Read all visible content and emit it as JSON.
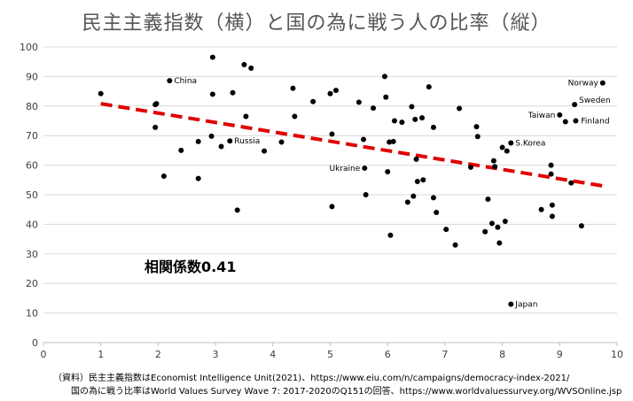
{
  "chart_data": {
    "type": "scatter",
    "title": "民主主義指数（横）と国の為に戦う人の比率（縦）",
    "xlim": [
      0,
      10
    ],
    "ylim": [
      0,
      100
    ],
    "x_ticks": [
      "0",
      "1",
      "2",
      "3",
      "4",
      "5",
      "6",
      "7",
      "8",
      "9",
      "10"
    ],
    "y_ticks": [
      "0",
      "10",
      "20",
      "30",
      "40",
      "50",
      "60",
      "70",
      "80",
      "90",
      "100"
    ],
    "grid": "horizontal",
    "trendline": {
      "type": "linear",
      "x": [
        1,
        9.75
      ],
      "y": [
        80.8,
        53.0
      ],
      "color": "#e00000",
      "style": "dashed"
    },
    "annotation": "相関係数0.41",
    "points": [
      {
        "x": 1.0,
        "y": 84.2
      },
      {
        "x": 1.95,
        "y": 80.5
      },
      {
        "x": 1.97,
        "y": 80.8
      },
      {
        "x": 1.95,
        "y": 72.8
      },
      {
        "x": 2.1,
        "y": 56.3
      },
      {
        "x": 2.2,
        "y": 88.6,
        "label": "China"
      },
      {
        "x": 2.4,
        "y": 65.0
      },
      {
        "x": 2.7,
        "y": 55.5
      },
      {
        "x": 2.7,
        "y": 68.0
      },
      {
        "x": 2.93,
        "y": 69.8
      },
      {
        "x": 2.95,
        "y": 96.5
      },
      {
        "x": 2.95,
        "y": 84.0
      },
      {
        "x": 3.1,
        "y": 66.3
      },
      {
        "x": 3.25,
        "y": 68.2,
        "label": "Russia"
      },
      {
        "x": 3.3,
        "y": 84.5
      },
      {
        "x": 3.38,
        "y": 44.8
      },
      {
        "x": 3.5,
        "y": 94.0
      },
      {
        "x": 3.53,
        "y": 76.5
      },
      {
        "x": 3.62,
        "y": 92.8
      },
      {
        "x": 3.85,
        "y": 64.8
      },
      {
        "x": 4.15,
        "y": 67.8
      },
      {
        "x": 4.35,
        "y": 86.0
      },
      {
        "x": 4.38,
        "y": 76.5
      },
      {
        "x": 4.7,
        "y": 81.5
      },
      {
        "x": 5.0,
        "y": 84.2
      },
      {
        "x": 5.03,
        "y": 70.5
      },
      {
        "x": 5.03,
        "y": 46.0
      },
      {
        "x": 5.1,
        "y": 85.3
      },
      {
        "x": 5.5,
        "y": 81.3
      },
      {
        "x": 5.58,
        "y": 68.7
      },
      {
        "x": 5.6,
        "y": 59.0,
        "label": "Ukraine"
      },
      {
        "x": 5.62,
        "y": 50.0
      },
      {
        "x": 5.75,
        "y": 79.3
      },
      {
        "x": 5.95,
        "y": 90.0
      },
      {
        "x": 5.97,
        "y": 83.0
      },
      {
        "x": 6.0,
        "y": 57.8
      },
      {
        "x": 6.03,
        "y": 67.8
      },
      {
        "x": 6.05,
        "y": 36.3
      },
      {
        "x": 6.1,
        "y": 68.0
      },
      {
        "x": 6.12,
        "y": 75.0
      },
      {
        "x": 6.25,
        "y": 74.5
      },
      {
        "x": 6.35,
        "y": 47.5
      },
      {
        "x": 6.42,
        "y": 79.8
      },
      {
        "x": 6.45,
        "y": 49.5
      },
      {
        "x": 6.48,
        "y": 75.5
      },
      {
        "x": 6.5,
        "y": 62.0
      },
      {
        "x": 6.52,
        "y": 54.5
      },
      {
        "x": 6.6,
        "y": 76.0
      },
      {
        "x": 6.62,
        "y": 55.0
      },
      {
        "x": 6.72,
        "y": 86.5
      },
      {
        "x": 6.8,
        "y": 72.8
      },
      {
        "x": 6.8,
        "y": 49.0
      },
      {
        "x": 6.85,
        "y": 44.0
      },
      {
        "x": 7.02,
        "y": 38.3
      },
      {
        "x": 7.18,
        "y": 33.0
      },
      {
        "x": 7.25,
        "y": 79.2
      },
      {
        "x": 7.45,
        "y": 59.3
      },
      {
        "x": 7.55,
        "y": 73.0
      },
      {
        "x": 7.57,
        "y": 69.7
      },
      {
        "x": 7.7,
        "y": 37.5
      },
      {
        "x": 7.75,
        "y": 48.5
      },
      {
        "x": 7.82,
        "y": 40.3
      },
      {
        "x": 7.85,
        "y": 61.5
      },
      {
        "x": 7.87,
        "y": 59.5
      },
      {
        "x": 7.92,
        "y": 39.0
      },
      {
        "x": 7.95,
        "y": 33.7
      },
      {
        "x": 8.0,
        "y": 66.0
      },
      {
        "x": 8.05,
        "y": 41.0
      },
      {
        "x": 8.08,
        "y": 64.8
      },
      {
        "x": 8.15,
        "y": 67.5,
        "label": "S.Korea"
      },
      {
        "x": 8.15,
        "y": 13.0,
        "label": "Japan"
      },
      {
        "x": 8.68,
        "y": 45.0
      },
      {
        "x": 8.85,
        "y": 60.0
      },
      {
        "x": 8.85,
        "y": 57.0
      },
      {
        "x": 8.87,
        "y": 46.5
      },
      {
        "x": 8.87,
        "y": 42.7
      },
      {
        "x": 9.0,
        "y": 77.0,
        "label": "Taiwan"
      },
      {
        "x": 9.1,
        "y": 74.7
      },
      {
        "x": 9.2,
        "y": 54.0
      },
      {
        "x": 9.26,
        "y": 80.5,
        "label": "Sweden"
      },
      {
        "x": 9.28,
        "y": 75.0,
        "label": "Finland"
      },
      {
        "x": 9.38,
        "y": 39.5
      },
      {
        "x": 9.75,
        "y": 87.8,
        "label": "Norway"
      }
    ]
  },
  "notes": {
    "line1": "（資料）民主主義指数はEconomist Intelligence Unit(2021)、https://www.eiu.com/n/campaigns/democracy-index-2021/",
    "line2": "国の為に戦う比率はWorld Values Survey Wave 7: 2017-2020のQ151の回答、https://www.worldvaluessurvey.org/WVSOnline.jsp"
  }
}
